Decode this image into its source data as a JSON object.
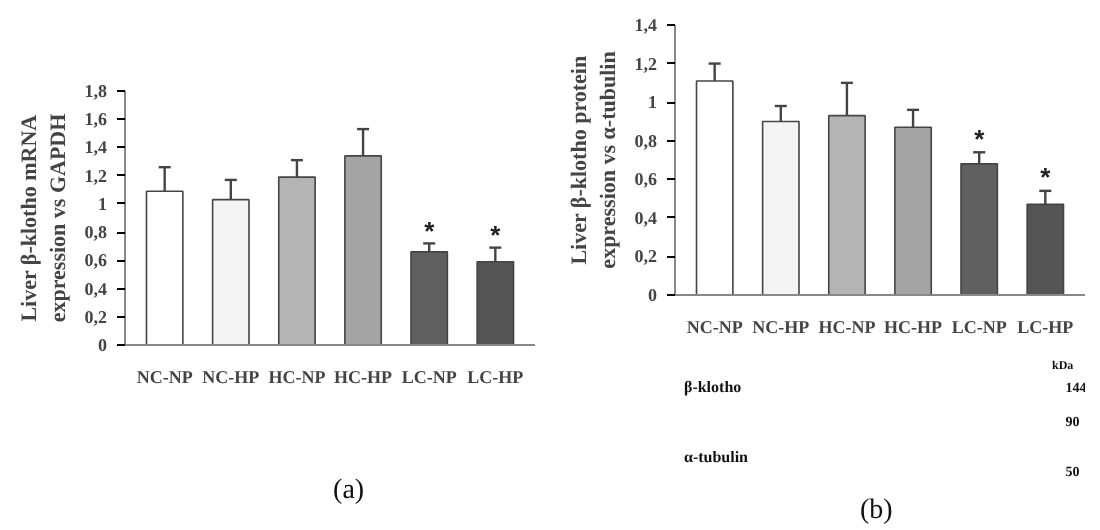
{
  "chart_data": [
    {
      "type": "bar",
      "ylabel": "Liver β-klotho mRNA\nexpression vs GAPDH",
      "categories": [
        "NC-NP",
        "NC-HP",
        "HC-NP",
        "HC-HP",
        "LC-NP",
        "LC-HP"
      ],
      "values": [
        1.09,
        1.03,
        1.19,
        1.34,
        0.66,
        0.59
      ],
      "colors": [
        "#ffffff",
        "#f4f4f4",
        "#b4b4b4",
        "#a4a4a4",
        "#606060",
        "#555555"
      ],
      "errors": [
        [
          1.09,
          1.26
        ],
        [
          1.03,
          1.17
        ],
        [
          1.19,
          1.31
        ],
        [
          1.34,
          1.53
        ],
        [
          0.66,
          0.72
        ],
        [
          0.59,
          0.69
        ]
      ],
      "ylim": [
        0,
        1.8
      ],
      "yticks": [
        0,
        {
          "value": 0.2,
          "label": "0,2"
        },
        {
          "value": 0.4,
          "label": "0,4"
        },
        {
          "value": 0.6,
          "label": "0,6"
        },
        {
          "value": 0.8,
          "label": "0,8"
        },
        1,
        {
          "value": 1.2,
          "label": "1,2"
        },
        {
          "value": 1.4,
          "label": "1,4"
        },
        {
          "value": 1.6,
          "label": "1,6"
        },
        {
          "value": 1.8,
          "label": "1,8"
        }
      ],
      "grid": false,
      "annotations": [
        "*",
        "*",
        "(a)"
      ]
    },
    {
      "type": "bar",
      "ylabel": "Liver β-klotho protein\nexpression vs α-tubulin",
      "categories": [
        "NC-NP",
        "NC-HP",
        "HC-NP",
        "HC-HP",
        "LC-NP",
        "LC-HP"
      ],
      "values": [
        1.11,
        0.9,
        0.93,
        0.87,
        0.68,
        0.47
      ],
      "colors": [
        "#ffffff",
        "#f4f4f4",
        "#b4b4b4",
        "#a4a4a4",
        "#606060",
        "#555555"
      ],
      "errors": [
        [
          1.11,
          1.2
        ],
        [
          0.9,
          0.98
        ],
        [
          0.93,
          1.1
        ],
        [
          0.87,
          0.96
        ],
        [
          0.68,
          0.74
        ],
        [
          0.47,
          0.54
        ]
      ],
      "ylim": [
        0,
        1.4
      ],
      "yticks": [
        0,
        {
          "value": 0.2,
          "label": "0,2"
        },
        {
          "value": 0.4,
          "label": "0,4"
        },
        {
          "value": 0.6,
          "label": "0,6"
        },
        {
          "value": 0.8,
          "label": "0,8"
        },
        1,
        {
          "value": 1.2,
          "label": "1,2"
        },
        {
          "value": 1.4,
          "label": "1,4"
        }
      ],
      "grid": false,
      "annotations": [
        "*",
        "*",
        "kDa",
        "144",
        "β-klotho",
        "90",
        "α-tubulin",
        "50",
        "(b)"
      ]
    }
  ]
}
